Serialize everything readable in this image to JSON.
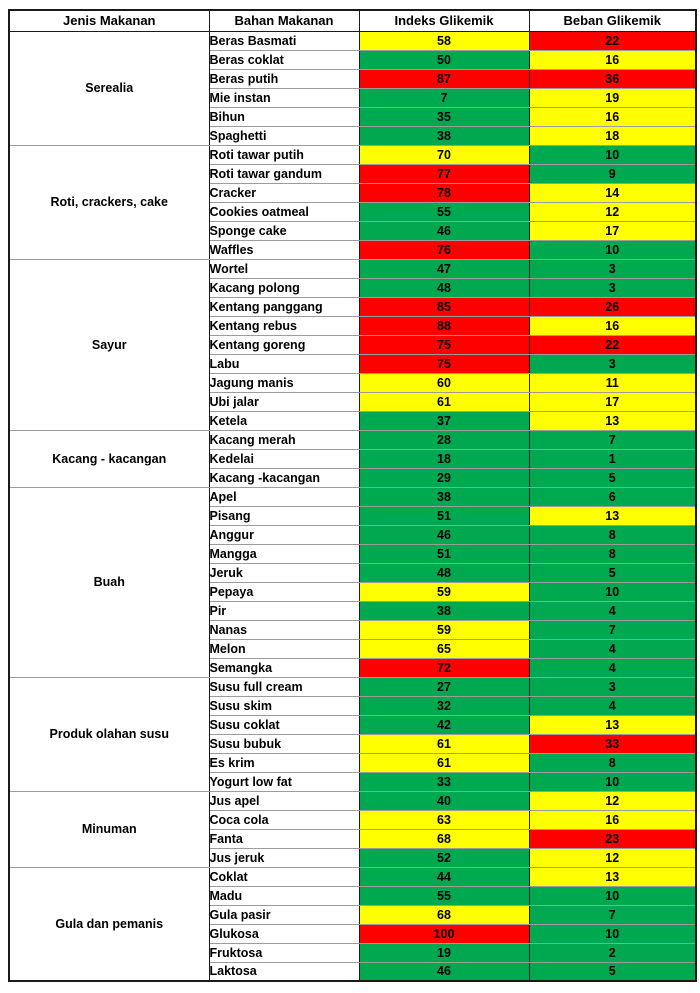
{
  "chart_data": {
    "type": "table",
    "columns": [
      "Jenis Makanan",
      "Bahan Makanan",
      "Indeks Glikemik",
      "Beban Glikemik"
    ],
    "color_key": {
      "green": "#00A94F",
      "yellow": "#FFFF00",
      "red": "#FF0000"
    },
    "groups": [
      {
        "jenis": "Serealia",
        "rows": [
          {
            "bahan": "Beras Basmati",
            "indeks": 58,
            "indeks_color": "yellow",
            "beban": 22,
            "beban_color": "red"
          },
          {
            "bahan": "Beras coklat",
            "indeks": 50,
            "indeks_color": "green",
            "beban": 16,
            "beban_color": "yellow"
          },
          {
            "bahan": "Beras putih",
            "indeks": 87,
            "indeks_color": "red",
            "beban": 36,
            "beban_color": "red"
          },
          {
            "bahan": "Mie instan",
            "indeks": 7,
            "indeks_color": "green",
            "beban": 19,
            "beban_color": "yellow"
          },
          {
            "bahan": "Bihun",
            "indeks": 35,
            "indeks_color": "green",
            "beban": 16,
            "beban_color": "yellow"
          },
          {
            "bahan": "Spaghetti",
            "indeks": 38,
            "indeks_color": "green",
            "beban": 18,
            "beban_color": "yellow"
          }
        ]
      },
      {
        "jenis": "Roti, crackers, cake",
        "rows": [
          {
            "bahan": "Roti tawar putih",
            "indeks": 70,
            "indeks_color": "yellow",
            "beban": 10,
            "beban_color": "green"
          },
          {
            "bahan": "Roti tawar gandum",
            "indeks": 77,
            "indeks_color": "red",
            "beban": 9,
            "beban_color": "green"
          },
          {
            "bahan": "Cracker",
            "indeks": 78,
            "indeks_color": "red",
            "beban": 14,
            "beban_color": "yellow"
          },
          {
            "bahan": "Cookies oatmeal",
            "indeks": 55,
            "indeks_color": "green",
            "beban": 12,
            "beban_color": "yellow"
          },
          {
            "bahan": "Sponge cake",
            "indeks": 46,
            "indeks_color": "green",
            "beban": 17,
            "beban_color": "yellow"
          },
          {
            "bahan": "Waffles",
            "indeks": 76,
            "indeks_color": "red",
            "beban": 10,
            "beban_color": "green"
          }
        ]
      },
      {
        "jenis": "Sayur",
        "rows": [
          {
            "bahan": "Wortel",
            "indeks": 47,
            "indeks_color": "green",
            "beban": 3,
            "beban_color": "green"
          },
          {
            "bahan": "Kacang polong",
            "indeks": 48,
            "indeks_color": "green",
            "beban": 3,
            "beban_color": "green"
          },
          {
            "bahan": "Kentang panggang",
            "indeks": 85,
            "indeks_color": "red",
            "beban": 26,
            "beban_color": "red"
          },
          {
            "bahan": "Kentang rebus",
            "indeks": 88,
            "indeks_color": "red",
            "beban": 16,
            "beban_color": "yellow"
          },
          {
            "bahan": "Kentang goreng",
            "indeks": 75,
            "indeks_color": "red",
            "beban": 22,
            "beban_color": "red"
          },
          {
            "bahan": "Labu",
            "indeks": 75,
            "indeks_color": "red",
            "beban": 3,
            "beban_color": "green"
          },
          {
            "bahan": "Jagung manis",
            "indeks": 60,
            "indeks_color": "yellow",
            "beban": 11,
            "beban_color": "yellow"
          },
          {
            "bahan": "Ubi jalar",
            "indeks": 61,
            "indeks_color": "yellow",
            "beban": 17,
            "beban_color": "yellow"
          },
          {
            "bahan": "Ketela",
            "indeks": 37,
            "indeks_color": "green",
            "beban": 13,
            "beban_color": "yellow"
          }
        ]
      },
      {
        "jenis": "Kacang - kacangan",
        "rows": [
          {
            "bahan": "Kacang merah",
            "indeks": 28,
            "indeks_color": "green",
            "beban": 7,
            "beban_color": "green"
          },
          {
            "bahan": "Kedelai",
            "indeks": 18,
            "indeks_color": "green",
            "beban": 1,
            "beban_color": "green"
          },
          {
            "bahan": "Kacang -kacangan",
            "indeks": 29,
            "indeks_color": "green",
            "beban": 5,
            "beban_color": "green"
          }
        ]
      },
      {
        "jenis": "Buah",
        "rows": [
          {
            "bahan": "Apel",
            "indeks": 38,
            "indeks_color": "green",
            "beban": 6,
            "beban_color": "green"
          },
          {
            "bahan": "Pisang",
            "indeks": 51,
            "indeks_color": "green",
            "beban": 13,
            "beban_color": "yellow"
          },
          {
            "bahan": "Anggur",
            "indeks": 46,
            "indeks_color": "green",
            "beban": 8,
            "beban_color": "green"
          },
          {
            "bahan": "Mangga",
            "indeks": 51,
            "indeks_color": "green",
            "beban": 8,
            "beban_color": "green"
          },
          {
            "bahan": "Jeruk",
            "indeks": 48,
            "indeks_color": "green",
            "beban": 5,
            "beban_color": "green"
          },
          {
            "bahan": "Pepaya",
            "indeks": 59,
            "indeks_color": "yellow",
            "beban": 10,
            "beban_color": "green"
          },
          {
            "bahan": "Pir",
            "indeks": 38,
            "indeks_color": "green",
            "beban": 4,
            "beban_color": "green"
          },
          {
            "bahan": "Nanas",
            "indeks": 59,
            "indeks_color": "yellow",
            "beban": 7,
            "beban_color": "green"
          },
          {
            "bahan": "Melon",
            "indeks": 65,
            "indeks_color": "yellow",
            "beban": 4,
            "beban_color": "green"
          },
          {
            "bahan": "Semangka",
            "indeks": 72,
            "indeks_color": "red",
            "beban": 4,
            "beban_color": "green"
          }
        ]
      },
      {
        "jenis": "Produk olahan susu",
        "rows": [
          {
            "bahan": "Susu full cream",
            "indeks": 27,
            "indeks_color": "green",
            "beban": 3,
            "beban_color": "green"
          },
          {
            "bahan": "Susu skim",
            "indeks": 32,
            "indeks_color": "green",
            "beban": 4,
            "beban_color": "green"
          },
          {
            "bahan": "Susu coklat",
            "indeks": 42,
            "indeks_color": "green",
            "beban": 13,
            "beban_color": "yellow"
          },
          {
            "bahan": "Susu bubuk",
            "indeks": 61,
            "indeks_color": "yellow",
            "beban": 33,
            "beban_color": "red"
          },
          {
            "bahan": "Es krim",
            "indeks": 61,
            "indeks_color": "yellow",
            "beban": 8,
            "beban_color": "green"
          },
          {
            "bahan": "Yogurt low fat",
            "indeks": 33,
            "indeks_color": "green",
            "beban": 10,
            "beban_color": "green"
          }
        ]
      },
      {
        "jenis": "Minuman",
        "rows": [
          {
            "bahan": "Jus apel",
            "indeks": 40,
            "indeks_color": "green",
            "beban": 12,
            "beban_color": "yellow"
          },
          {
            "bahan": "Coca cola",
            "indeks": 63,
            "indeks_color": "yellow",
            "beban": 16,
            "beban_color": "yellow"
          },
          {
            "bahan": "Fanta",
            "indeks": 68,
            "indeks_color": "yellow",
            "beban": 23,
            "beban_color": "red"
          },
          {
            "bahan": "Jus jeruk",
            "indeks": 52,
            "indeks_color": "green",
            "beban": 12,
            "beban_color": "yellow"
          }
        ]
      },
      {
        "jenis": "Gula dan pemanis",
        "rows": [
          {
            "bahan": "Coklat",
            "indeks": 44,
            "indeks_color": "green",
            "beban": 13,
            "beban_color": "yellow"
          },
          {
            "bahan": "Madu",
            "indeks": 55,
            "indeks_color": "green",
            "beban": 10,
            "beban_color": "green"
          },
          {
            "bahan": "Gula pasir",
            "indeks": 68,
            "indeks_color": "yellow",
            "beban": 7,
            "beban_color": "green"
          },
          {
            "bahan": "Glukosa",
            "indeks": 100,
            "indeks_color": "red",
            "beban": 10,
            "beban_color": "green"
          },
          {
            "bahan": "Fruktosa",
            "indeks": 19,
            "indeks_color": "green",
            "beban": 2,
            "beban_color": "green"
          },
          {
            "bahan": "Laktosa",
            "indeks": 46,
            "indeks_color": "green",
            "beban": 5,
            "beban_color": "green"
          }
        ]
      }
    ]
  }
}
